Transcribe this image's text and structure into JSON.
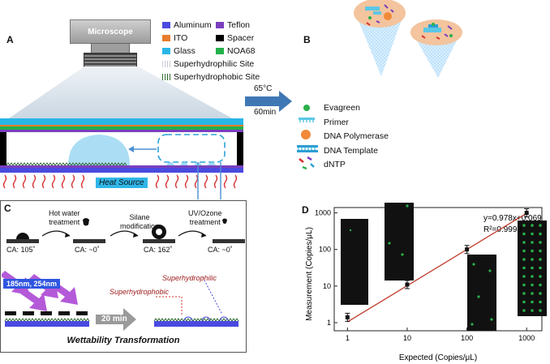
{
  "panels": {
    "a": "A",
    "b": "B",
    "c": "C",
    "d": "D"
  },
  "microscope": "Microscope",
  "legend_a": {
    "aluminum": {
      "label": "Aluminum",
      "color": "#4a4ae0"
    },
    "teflon": {
      "label": "Teflon",
      "color": "#7a3fbf"
    },
    "ito": {
      "label": "ITO",
      "color": "#e87d2a"
    },
    "spacer": {
      "label": "Spacer",
      "color": "#000000"
    },
    "glass": {
      "label": "Glass",
      "color": "#29b6e6"
    },
    "noa68": {
      "label": "NOA68",
      "color": "#22b04a"
    },
    "superhydrophilic": "Superhydrophilic Site",
    "superhydrophobic": "Superhydrophobic Site"
  },
  "heat_source": "Heat Source",
  "arrow_temp": "65°C",
  "arrow_time": "60min",
  "legend_b": {
    "evagreen": "Evagreen",
    "primer": "Primer",
    "polymerase": "DNA Polymerase",
    "template": "DNA Template",
    "dntp": "dNTP"
  },
  "panel_c": {
    "step1": "Hot water\ntreatment",
    "step2": "Silane\nmodification",
    "step3": "UV/Ozone\ntreatment",
    "ca": [
      "CA: 105˚",
      "CA: ~0˚",
      "CA: 162˚",
      "CA: ~0˚"
    ],
    "uv_label": "185nm, 254nm",
    "duration": "20 min",
    "superhydrophilic": "Superhydrophilic",
    "superhydrophobic": "Superhydrophobic",
    "title": "Wettability Transformation"
  },
  "chart_data": {
    "type": "scatter",
    "x": [
      1,
      10,
      100,
      1000
    ],
    "y": [
      1.4,
      11,
      100,
      1000
    ],
    "xlabel": "Expected (Copies/μL)",
    "ylabel": "Measurement (Copies/μL)",
    "xticks": [
      "1",
      "10",
      "100",
      "1000"
    ],
    "yticks": [
      "1",
      "10",
      "100",
      "1000"
    ],
    "xlim": [
      0.6,
      1800
    ],
    "ylim": [
      0.6,
      1400
    ],
    "scale": "log-log",
    "equation": "y=0.978x+0.069",
    "r2": "R²=0.9998",
    "fit_color": "#c0392b"
  }
}
